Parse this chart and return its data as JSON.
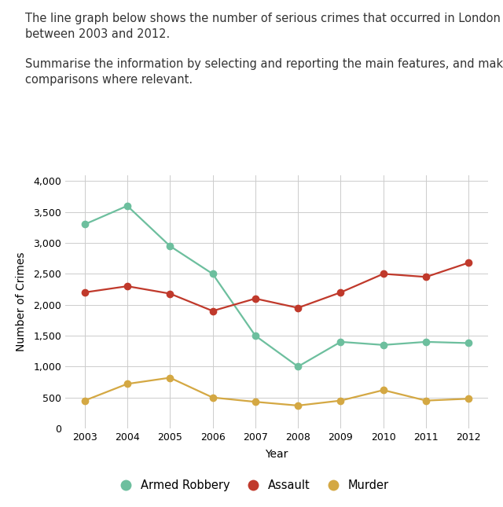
{
  "years": [
    2003,
    2004,
    2005,
    2006,
    2007,
    2008,
    2009,
    2010,
    2011,
    2012
  ],
  "armed_robbery": [
    3300,
    3600,
    2950,
    2500,
    1500,
    1000,
    1400,
    1350,
    1400,
    1380
  ],
  "assault": [
    2200,
    2300,
    2180,
    1900,
    2100,
    1950,
    2200,
    2500,
    2450,
    2680
  ],
  "murder": [
    450,
    720,
    820,
    500,
    430,
    370,
    450,
    620,
    450,
    480
  ],
  "armed_robbery_color": "#6dbf9e",
  "assault_color": "#c0392b",
  "murder_color": "#d4a843",
  "text_line1": "The line graph below shows the number of serious crimes that occurred in London\nbetween 2003 and 2012.",
  "text_line2": "Summarise the information by selecting and reporting the main features, and make\ncomparisons where relevant.",
  "ylabel": "Number of Crimes",
  "xlabel": "Year",
  "ylim": [
    0,
    4100
  ],
  "yticks": [
    0,
    500,
    1000,
    1500,
    2000,
    2500,
    3000,
    3500,
    4000
  ],
  "ytick_labels": [
    "0",
    "500",
    "1,000",
    "1,500",
    "2,000",
    "2,500",
    "3,000",
    "3,500",
    "4,000"
  ],
  "legend_labels": [
    "Armed Robbery",
    "Assault",
    "Murder"
  ],
  "marker_size": 6,
  "line_width": 1.6,
  "background_color": "#ffffff",
  "grid_color": "#cccccc",
  "text_fontsize": 10.5,
  "tick_fontsize": 9,
  "label_fontsize": 10
}
